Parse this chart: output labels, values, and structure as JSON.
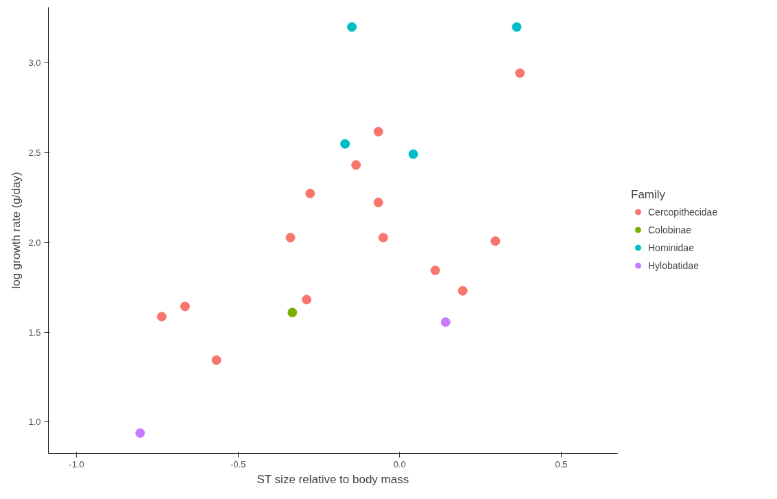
{
  "chart_data": {
    "type": "scatter",
    "xlabel": "ST size relative to body mass",
    "ylabel": "log growth rate (g/day)",
    "legend_title": "Family",
    "legend": "right",
    "grid": false,
    "marker": "circle",
    "xlim": [
      -1.087,
      0.674
    ],
    "ylim": [
      0.826,
      3.31
    ],
    "xticks": [
      {
        "value": -1,
        "label": "-1.0"
      },
      -0.5,
      {
        "value": 0,
        "label": "0.0"
      },
      0.5
    ],
    "yticks": [
      {
        "value": 1,
        "label": "1.0"
      },
      1.5,
      {
        "value": 2,
        "label": "2.0"
      },
      2.5,
      {
        "value": 3,
        "label": "3.0"
      }
    ],
    "series": [
      {
        "name": "Cercopithecidae",
        "color": "#f8766d",
        "x": [
          0.372,
          -0.066,
          -0.135,
          -0.277,
          -0.066,
          -0.051,
          -0.338,
          0.296,
          0.11,
          0.195,
          -0.288,
          -0.664,
          -0.736,
          -0.567
        ],
        "values": [
          2.943,
          2.617,
          2.432,
          2.273,
          2.223,
          2.027,
          2.027,
          2.008,
          1.845,
          1.731,
          1.682,
          1.644,
          1.587,
          1.345
        ]
      },
      {
        "name": "Colobinae",
        "color": "#7cae00",
        "x": [
          -0.332
        ],
        "values": [
          1.61
        ]
      },
      {
        "name": "Hominidae",
        "color": "#00bfc4",
        "x": [
          -0.148,
          0.362,
          -0.169,
          0.042
        ],
        "values": [
          3.2,
          3.2,
          2.549,
          2.492
        ]
      },
      {
        "name": "Hylobatidae",
        "color": "#c77cff",
        "x": [
          0.142,
          -0.803
        ],
        "values": [
          1.557,
          0.939
        ]
      }
    ]
  }
}
